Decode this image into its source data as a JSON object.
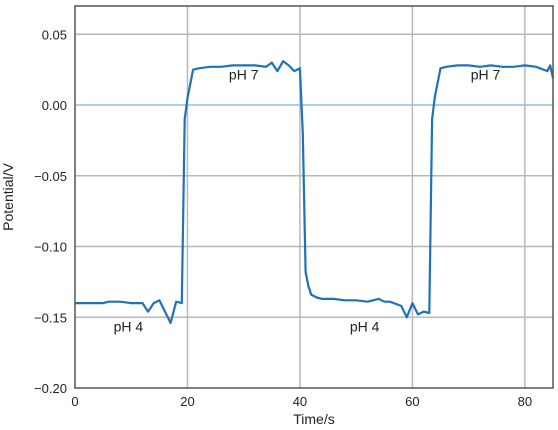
{
  "chart_data": {
    "type": "line",
    "title": "",
    "xlabel": "Time/s",
    "ylabel": "Potential/V",
    "xlim": [
      0,
      85
    ],
    "ylim": [
      -0.2,
      0.07
    ],
    "x_ticks": [
      "0",
      "20",
      "40",
      "60",
      "80"
    ],
    "y_ticks": [
      "0.05",
      "0.00",
      "−0.05",
      "−0.10",
      "−0.15",
      "−0.20"
    ],
    "grid": true,
    "colors": {
      "series": "#1f72b8",
      "grid": "#b8b8b8",
      "zero_line": "#8fbfe0",
      "frame": "#555555"
    },
    "annotations": [
      {
        "text": "pH 4",
        "x": 9.5,
        "y": -0.16
      },
      {
        "text": "pH 7",
        "x": 30,
        "y": 0.018
      },
      {
        "text": "pH 4",
        "x": 51.5,
        "y": -0.16
      },
      {
        "text": "pH 7",
        "x": 73,
        "y": 0.018
      }
    ],
    "series": [
      {
        "x": [
          0,
          3,
          5,
          6,
          8,
          10,
          12,
          13,
          14,
          15,
          16,
          17,
          18,
          19,
          19.5,
          20,
          20.5,
          21,
          22,
          24,
          26,
          28,
          30,
          32,
          34,
          35,
          36,
          37,
          38,
          39,
          40,
          40.5,
          41,
          41.5,
          42,
          43,
          44,
          46,
          48,
          50,
          52,
          54,
          55,
          56,
          58,
          59,
          60,
          61,
          62,
          63,
          63.5,
          64,
          65,
          66,
          68,
          70,
          72,
          74,
          76,
          78,
          80,
          82,
          84,
          84.5,
          85
        ],
        "y": [
          -0.14,
          -0.14,
          -0.14,
          -0.139,
          -0.139,
          -0.14,
          -0.14,
          -0.146,
          -0.14,
          -0.138,
          -0.146,
          -0.154,
          -0.139,
          -0.14,
          -0.01,
          0.005,
          0.015,
          0.025,
          0.026,
          0.027,
          0.027,
          0.028,
          0.028,
          0.028,
          0.027,
          0.03,
          0.024,
          0.031,
          0.028,
          0.024,
          0.026,
          -0.02,
          -0.118,
          -0.128,
          -0.134,
          -0.136,
          -0.137,
          -0.137,
          -0.138,
          -0.138,
          -0.139,
          -0.137,
          -0.139,
          -0.139,
          -0.142,
          -0.15,
          -0.14,
          -0.148,
          -0.146,
          -0.147,
          -0.01,
          0.006,
          0.026,
          0.027,
          0.028,
          0.028,
          0.027,
          0.028,
          0.027,
          0.027,
          0.028,
          0.027,
          0.024,
          0.028,
          0.019
        ]
      }
    ]
  }
}
